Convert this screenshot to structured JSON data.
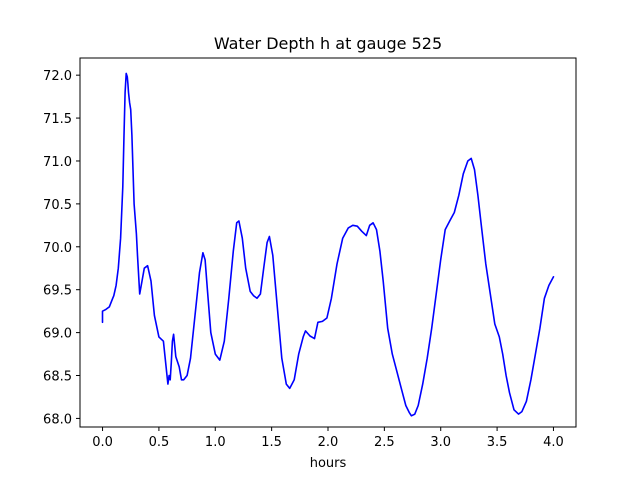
{
  "chart_data": {
    "type": "line",
    "title": "Water Depth h at gauge 525",
    "xlabel": "hours",
    "ylabel": "",
    "xlim": [
      -0.2,
      4.2
    ],
    "ylim": [
      67.9,
      72.2
    ],
    "xticks": [
      "0.0",
      "0.5",
      "1.0",
      "1.5",
      "2.0",
      "2.5",
      "3.0",
      "3.5",
      "4.0"
    ],
    "yticks": [
      "68.0",
      "68.5",
      "69.0",
      "69.5",
      "70.0",
      "70.5",
      "71.0",
      "71.5",
      "72.0"
    ],
    "grid": false,
    "legend": "none",
    "series": [
      {
        "color": "#0000ff",
        "x": [
          0.0,
          0.0,
          0.03,
          0.06,
          0.09,
          0.1,
          0.12,
          0.14,
          0.16,
          0.18,
          0.19,
          0.2,
          0.21,
          0.22,
          0.225,
          0.23,
          0.24,
          0.25,
          0.26,
          0.27,
          0.28,
          0.3,
          0.31,
          0.33,
          0.35,
          0.37,
          0.4,
          0.43,
          0.46,
          0.5,
          0.54,
          0.58,
          0.59,
          0.6,
          0.61,
          0.62,
          0.63,
          0.65,
          0.68,
          0.7,
          0.72,
          0.75,
          0.78,
          0.82,
          0.86,
          0.89,
          0.91,
          0.93,
          0.96,
          1.0,
          1.04,
          1.08,
          1.12,
          1.16,
          1.19,
          1.21,
          1.24,
          1.27,
          1.31,
          1.34,
          1.37,
          1.4,
          1.43,
          1.46,
          1.48,
          1.51,
          1.55,
          1.59,
          1.63,
          1.66,
          1.7,
          1.74,
          1.78,
          1.8,
          1.84,
          1.88,
          1.91,
          1.95,
          1.99,
          2.03,
          2.08,
          2.13,
          2.18,
          2.22,
          2.26,
          2.3,
          2.34,
          2.37,
          2.4,
          2.43,
          2.46,
          2.49,
          2.53,
          2.57,
          2.61,
          2.65,
          2.69,
          2.72,
          2.74,
          2.77,
          2.8,
          2.84,
          2.88,
          2.92,
          2.96,
          3.0,
          3.04,
          3.08,
          3.12,
          3.16,
          3.2,
          3.24,
          3.27,
          3.3,
          3.33,
          3.36,
          3.4,
          3.44,
          3.48,
          3.52,
          3.55,
          3.58,
          3.61,
          3.65,
          3.69,
          3.72,
          3.76,
          3.8,
          3.84,
          3.88,
          3.92,
          3.96,
          4.0
        ],
        "values": [
          69.12,
          69.25,
          69.27,
          69.3,
          69.4,
          69.43,
          69.55,
          69.75,
          70.1,
          70.7,
          71.3,
          71.8,
          72.02,
          71.98,
          71.9,
          71.8,
          71.68,
          71.6,
          71.3,
          70.9,
          70.5,
          70.15,
          69.9,
          69.45,
          69.6,
          69.75,
          69.78,
          69.6,
          69.2,
          68.95,
          68.9,
          68.4,
          68.5,
          68.45,
          68.65,
          68.9,
          68.98,
          68.72,
          68.6,
          68.45,
          68.45,
          68.5,
          68.7,
          69.2,
          69.7,
          69.93,
          69.85,
          69.5,
          69.0,
          68.75,
          68.68,
          68.9,
          69.4,
          69.95,
          70.28,
          70.3,
          70.1,
          69.75,
          69.48,
          69.43,
          69.4,
          69.45,
          69.75,
          70.05,
          70.12,
          69.9,
          69.3,
          68.7,
          68.4,
          68.35,
          68.45,
          68.75,
          68.95,
          69.02,
          68.96,
          68.93,
          69.12,
          69.13,
          69.17,
          69.4,
          69.8,
          70.1,
          70.22,
          70.25,
          70.24,
          70.18,
          70.13,
          70.25,
          70.28,
          70.2,
          69.95,
          69.6,
          69.05,
          68.75,
          68.55,
          68.35,
          68.15,
          68.07,
          68.03,
          68.05,
          68.15,
          68.4,
          68.7,
          69.05,
          69.45,
          69.85,
          70.2,
          70.3,
          70.4,
          70.6,
          70.85,
          71.0,
          71.03,
          70.9,
          70.6,
          70.25,
          69.8,
          69.45,
          69.1,
          68.95,
          68.75,
          68.5,
          68.3,
          68.1,
          68.05,
          68.08,
          68.2,
          68.45,
          68.75,
          69.05,
          69.4,
          69.55,
          69.65
        ]
      }
    ]
  }
}
